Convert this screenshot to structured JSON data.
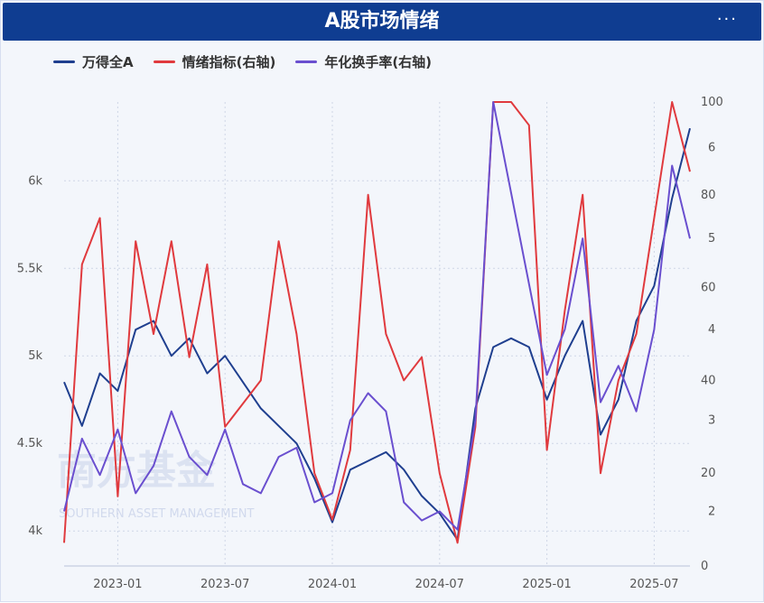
{
  "header": {
    "title": "A股市场情绪",
    "menu_label": "···"
  },
  "colors": {
    "index": "#1f3f8f",
    "sentiment": "#e03a3e",
    "turnover": "#6a4fcf",
    "grid": "#cfd6e6",
    "axis_text": "#555555"
  },
  "watermark": {
    "cn": "南方基金",
    "en": "SOUTHERN ASSET MANAGEMENT"
  },
  "chart_data": {
    "type": "line",
    "title": "A股市场情绪",
    "x_ticks": [
      "2023-01",
      "2023-07",
      "2024-01",
      "2024-07",
      "2025-01",
      "2025-07"
    ],
    "x_range": [
      "2022-10",
      "2025-09"
    ],
    "y_left": {
      "ticks": [
        "4k",
        "4.5k",
        "5k",
        "5.5k",
        "6k"
      ],
      "range": [
        3800,
        6450
      ]
    },
    "y_right_sentiment": {
      "ticks": [
        "0",
        "20",
        "40",
        "60",
        "80",
        "100"
      ],
      "range": [
        0,
        100
      ]
    },
    "y_right_turnover": {
      "ticks": [
        "2",
        "3",
        "4",
        "5",
        "6"
      ],
      "range": [
        1.4,
        6.5
      ]
    },
    "legend_position": "top-left",
    "series": [
      {
        "name": "万得全A",
        "axis": "left",
        "x": [
          "2022-10",
          "2022-11",
          "2022-12",
          "2023-01",
          "2023-02",
          "2023-03",
          "2023-04",
          "2023-05",
          "2023-06",
          "2023-07",
          "2023-08",
          "2023-09",
          "2023-10",
          "2023-11",
          "2023-12",
          "2024-01",
          "2024-02",
          "2024-03",
          "2024-04",
          "2024-05",
          "2024-06",
          "2024-07",
          "2024-08",
          "2024-09",
          "2024-10",
          "2024-11",
          "2024-12",
          "2025-01",
          "2025-02",
          "2025-03",
          "2025-04",
          "2025-05",
          "2025-06",
          "2025-07",
          "2025-08",
          "2025-09"
        ],
        "values": [
          4850,
          4600,
          4900,
          4800,
          5150,
          5200,
          5000,
          5100,
          4900,
          5000,
          4850,
          4700,
          4600,
          4500,
          4300,
          4050,
          4350,
          4400,
          4450,
          4350,
          4200,
          4100,
          3950,
          4700,
          5050,
          5100,
          5050,
          4750,
          5000,
          5200,
          4550,
          4750,
          5200,
          5400,
          5900,
          6300
        ]
      },
      {
        "name": "情绪指标(右轴)",
        "axis": "right",
        "x": [
          "2022-10",
          "2022-11",
          "2022-12",
          "2023-01",
          "2023-02",
          "2023-03",
          "2023-04",
          "2023-05",
          "2023-06",
          "2023-07",
          "2023-08",
          "2023-09",
          "2023-10",
          "2023-11",
          "2023-12",
          "2024-01",
          "2024-02",
          "2024-03",
          "2024-04",
          "2024-05",
          "2024-06",
          "2024-07",
          "2024-08",
          "2024-09",
          "2024-10",
          "2024-11",
          "2024-12",
          "2025-01",
          "2025-02",
          "2025-03",
          "2025-04",
          "2025-05",
          "2025-06",
          "2025-07",
          "2025-08",
          "2025-09"
        ],
        "values": [
          5,
          65,
          75,
          15,
          70,
          50,
          70,
          45,
          65,
          30,
          35,
          40,
          70,
          50,
          20,
          10,
          25,
          80,
          50,
          40,
          45,
          20,
          5,
          30,
          100,
          100,
          95,
          25,
          55,
          80,
          20,
          40,
          50,
          75,
          100,
          85
        ]
      },
      {
        "name": "年化换手率(右轴)",
        "axis": "right2",
        "x": [
          "2022-10",
          "2022-11",
          "2022-12",
          "2023-01",
          "2023-02",
          "2023-03",
          "2023-04",
          "2023-05",
          "2023-06",
          "2023-07",
          "2023-08",
          "2023-09",
          "2023-10",
          "2023-11",
          "2023-12",
          "2024-01",
          "2024-02",
          "2024-03",
          "2024-04",
          "2024-05",
          "2024-06",
          "2024-07",
          "2024-08",
          "2024-09",
          "2024-10",
          "2024-11",
          "2024-12",
          "2025-01",
          "2025-02",
          "2025-03",
          "2025-04",
          "2025-05",
          "2025-06",
          "2025-07",
          "2025-08",
          "2025-09"
        ],
        "values": [
          2.0,
          2.8,
          2.4,
          2.9,
          2.2,
          2.5,
          3.1,
          2.6,
          2.4,
          2.9,
          2.3,
          2.2,
          2.6,
          2.7,
          2.1,
          2.2,
          3.0,
          3.3,
          3.1,
          2.1,
          1.9,
          2.0,
          1.8,
          3.0,
          6.5,
          5.5,
          4.5,
          3.5,
          4.0,
          5.0,
          3.2,
          3.6,
          3.1,
          4.0,
          5.8,
          5.0
        ]
      }
    ]
  }
}
